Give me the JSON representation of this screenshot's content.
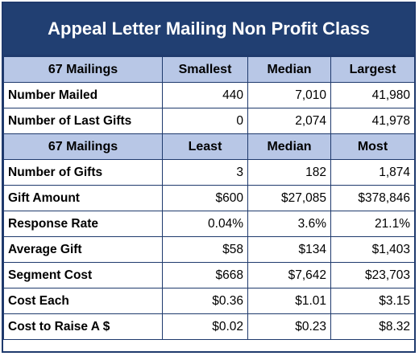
{
  "title": "Appeal Letter Mailing Non Profit Class",
  "section1": {
    "headers": [
      "67 Mailings",
      "Smallest",
      "Median",
      "Largest"
    ],
    "rows": [
      {
        "label": "Number Mailed",
        "values": [
          "440",
          "7,010",
          "41,980"
        ]
      },
      {
        "label": "Number of Last Gifts",
        "values": [
          "0",
          "2,074",
          "41,978"
        ]
      }
    ]
  },
  "section2": {
    "headers": [
      "67 Mailings",
      "Least",
      "Median",
      "Most"
    ],
    "rows": [
      {
        "label": "Number of Gifts",
        "values": [
          "3",
          "182",
          "1,874"
        ]
      },
      {
        "label": "Gift Amount",
        "values": [
          "$600",
          "$27,085",
          "$378,846"
        ]
      },
      {
        "label": "Response Rate",
        "values": [
          "0.04%",
          "3.6%",
          "21.1%"
        ]
      },
      {
        "label": "Average Gift",
        "values": [
          "$58",
          "$134",
          "$1,403"
        ]
      },
      {
        "label": "Segment Cost",
        "values": [
          "$668",
          "$7,642",
          "$23,703"
        ]
      },
      {
        "label": "Cost Each",
        "values": [
          "$0.36",
          "$1.01",
          "$3.15"
        ]
      },
      {
        "label": "Cost to Raise A $",
        "values": [
          "$0.02",
          "$0.23",
          "$8.32"
        ]
      }
    ]
  },
  "colors": {
    "title_bg": "#213f72",
    "header_bg": "#b8c7e6",
    "border": "#1f3a6d"
  }
}
